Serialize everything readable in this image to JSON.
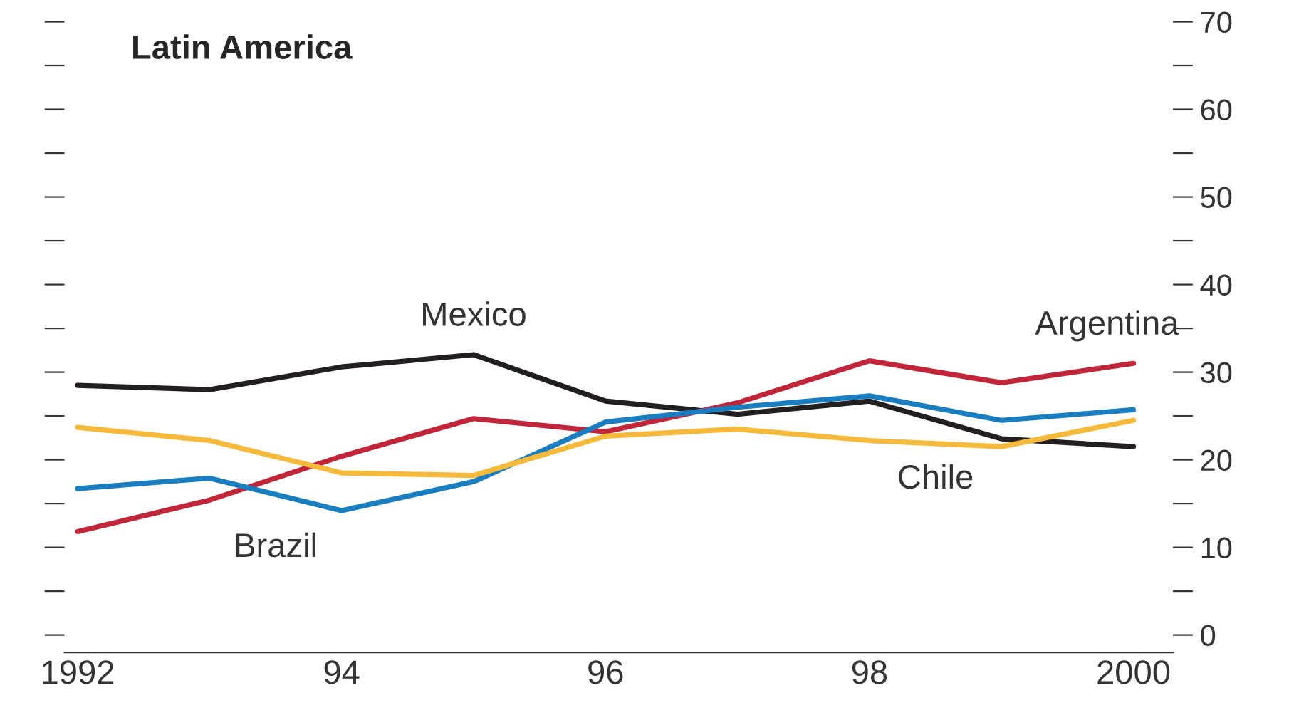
{
  "chart_data": {
    "type": "line",
    "title": "Latin America",
    "x": [
      1992,
      1993,
      1994,
      1995,
      1996,
      1997,
      1998,
      1999,
      2000
    ],
    "series": [
      {
        "name": "Mexico",
        "color": "#231f20",
        "values": [
          28.5,
          28,
          30.6,
          32,
          26.7,
          25.2,
          26.7,
          22.4,
          21.5
        ]
      },
      {
        "name": "Argentina",
        "color": "#c0253a",
        "values": [
          11.8,
          15.4,
          20.4,
          24.7,
          23.2,
          26.5,
          31.3,
          28.8,
          31
        ]
      },
      {
        "name": "Brazil",
        "color": "#1a7dc0",
        "values": [
          16.7,
          17.9,
          14.2,
          17.5,
          24.3,
          26,
          27.3,
          24.5,
          25.7
        ]
      },
      {
        "name": "Chile",
        "color": "#f5b93c",
        "values": [
          23.7,
          22.2,
          18.5,
          18.2,
          22.7,
          23.5,
          22.2,
          21.5,
          24.5
        ]
      }
    ],
    "xlim": [
      1991.9,
      2000.3
    ],
    "xticks": [
      1992,
      {
        "value": 1994,
        "label": "94"
      },
      {
        "value": 1996,
        "label": "96"
      },
      {
        "value": 1998,
        "label": "98"
      },
      2000
    ],
    "ylim": [
      -2,
      70
    ],
    "yticks": [
      0,
      {
        "value": 5,
        "label": null
      },
      10,
      {
        "value": 15,
        "label": null
      },
      20,
      {
        "value": 25,
        "label": null
      },
      30,
      {
        "value": 35,
        "label": null
      },
      40,
      {
        "value": 45,
        "label": null
      },
      50,
      {
        "value": 55,
        "label": null
      },
      60,
      {
        "value": 65,
        "label": null
      },
      70
    ],
    "grid": false,
    "legend": false,
    "marker": "none",
    "line_style": "solid"
  }
}
